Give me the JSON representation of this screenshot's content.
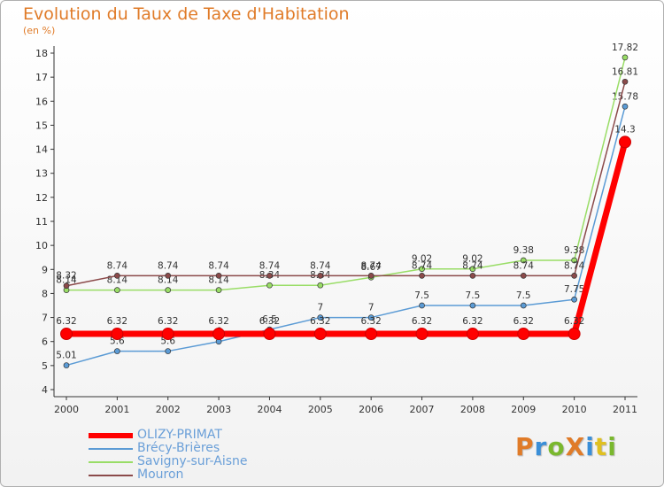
{
  "page": {
    "title": "Evolution du Taux de Taxe d'Habitation",
    "subtitle": "(en %)",
    "logo": {
      "text": "ProXiti",
      "colors": [
        "#e07b28",
        "#3a8fd8",
        "#7ab82e",
        "#e07b28",
        "#3a8fd8",
        "#e0c020",
        "#7ab82e"
      ]
    }
  },
  "chart_data": {
    "type": "line",
    "title": "Evolution du Taux de Taxe d'Habitation",
    "subtitle": "(en %)",
    "x": [
      "2000",
      "2001",
      "2002",
      "2003",
      "2004",
      "2005",
      "2006",
      "2007",
      "2008",
      "2009",
      "2010",
      "2011"
    ],
    "ylim": [
      4,
      18
    ],
    "yticks": [
      4,
      5,
      6,
      7,
      8,
      9,
      10,
      11,
      12,
      13,
      14,
      15,
      16,
      17,
      18
    ],
    "grid": false,
    "legend_position": "bottom-left",
    "series": [
      {
        "name": "Brécy-Brières",
        "color": "#5b9bd5",
        "values": [
          5.01,
          5.6,
          5.6,
          6.0,
          6.5,
          7.0,
          7.0,
          7.5,
          7.5,
          7.5,
          7.75,
          15.78
        ],
        "labels": [
          "5.01",
          "5.6",
          "5.6",
          "6",
          "6.5",
          "7",
          "7",
          "7.5",
          "7.5",
          "7.5",
          "7.75",
          "15.78"
        ]
      },
      {
        "name": "Savigny-sur-Aisne",
        "color": "#99dd66",
        "values": [
          8.14,
          8.14,
          8.14,
          8.14,
          8.34,
          8.34,
          8.67,
          9.02,
          9.02,
          9.38,
          9.38,
          17.82
        ],
        "labels": [
          "8.14",
          "8.14",
          "8.14",
          "8.14",
          "8.34",
          "8.34",
          "8.67",
          "9.02",
          "9.02",
          "9.38",
          "9.38",
          "17.82"
        ]
      },
      {
        "name": "Mouron",
        "color": "#8b4a4a",
        "values": [
          8.32,
          8.74,
          8.74,
          8.74,
          8.74,
          8.74,
          8.74,
          8.74,
          8.74,
          8.74,
          8.74,
          16.81
        ],
        "labels": [
          "8.32",
          "8.74",
          "8.74",
          "8.74",
          "8.74",
          "8.74",
          "8.74",
          "8.74",
          "8.74",
          "8.74",
          "8.74",
          "16.81"
        ]
      },
      {
        "name": "OLIZY-PRIMAT",
        "color": "#ff0000",
        "values": [
          6.32,
          6.32,
          6.32,
          6.32,
          6.32,
          6.32,
          6.32,
          6.32,
          6.32,
          6.32,
          6.32,
          14.3
        ],
        "labels": [
          "6.32",
          "6.32",
          "6.32",
          "6.32",
          "6.32",
          "6.32",
          "6.32",
          "6.32",
          "6.32",
          "6.32",
          "6.32",
          "14.3"
        ]
      }
    ],
    "legend": [
      {
        "name": "OLIZY-PRIMAT",
        "color": "#ff0000",
        "bold": true
      },
      {
        "name": "Brécy-Brières",
        "color": "#5b9bd5",
        "bold": false
      },
      {
        "name": "Savigny-sur-Aisne",
        "color": "#99dd66",
        "bold": false
      },
      {
        "name": "Mouron",
        "color": "#8b4a4a",
        "bold": false
      }
    ]
  }
}
